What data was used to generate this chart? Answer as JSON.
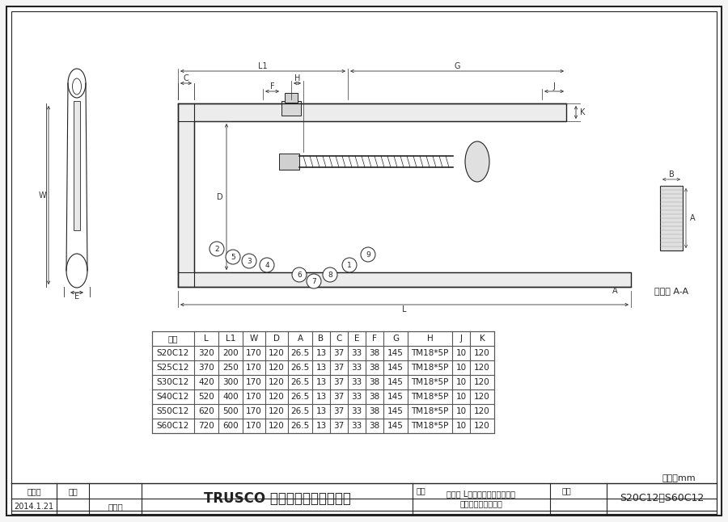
{
  "bg_color": "#f5f5f5",
  "border_color": "#333333",
  "table_headers": [
    "品番",
    "L",
    "L1",
    "W",
    "D",
    "A",
    "B",
    "C",
    "E",
    "F",
    "G",
    "H",
    "J",
    "K"
  ],
  "table_rows": [
    [
      "S20C12",
      "320",
      "200",
      "170",
      "120",
      "26.5",
      "13",
      "37",
      "33",
      "38",
      "145",
      "TM18*5P",
      "10",
      "120"
    ],
    [
      "S25C12",
      "370",
      "250",
      "170",
      "120",
      "26.5",
      "13",
      "37",
      "33",
      "38",
      "145",
      "TM18*5P",
      "10",
      "120"
    ],
    [
      "S30C12",
      "420",
      "300",
      "170",
      "120",
      "26.5",
      "13",
      "37",
      "33",
      "38",
      "145",
      "TM18*5P",
      "10",
      "120"
    ],
    [
      "S40C12",
      "520",
      "400",
      "170",
      "120",
      "26.5",
      "13",
      "37",
      "33",
      "38",
      "145",
      "TM18*5P",
      "10",
      "120"
    ],
    [
      "S50C12",
      "620",
      "500",
      "170",
      "120",
      "26.5",
      "13",
      "37",
      "33",
      "38",
      "145",
      "TM18*5P",
      "10",
      "120"
    ],
    [
      "S60C12",
      "720",
      "600",
      "170",
      "120",
      "26.5",
      "13",
      "37",
      "33",
      "38",
      "145",
      "TM18*5P",
      "10",
      "120"
    ]
  ],
  "unit_text": "単位：mm",
  "footer_date_label": "作成日",
  "footer_date": "2014.1.21",
  "footer_check_label": "検図",
  "footer_check": "海外部",
  "footer_company": "TRUSCO トラスコ中山株式会社",
  "footer_product_label": "品名",
  "footer_product": "エホマ L型クランプ（強力型）\nスタンダードタイプ",
  "footer_number_label": "品番",
  "footer_number": "S20C12〜S60C12",
  "drawing_title": "断面図 A-A",
  "dim_labels": [
    "C",
    "L1",
    "G",
    "F",
    "H",
    "J",
    "K",
    "W",
    "D",
    "E",
    "L",
    "B",
    "A"
  ],
  "part_numbers": [
    "2",
    "5",
    "3",
    "4",
    "6",
    "7",
    "8",
    "1",
    "9"
  ],
  "line_color": "#222222",
  "dim_color": "#333333",
  "table_line_color": "#555555",
  "header_bg": "#ffffff",
  "row_bg": "#ffffff"
}
